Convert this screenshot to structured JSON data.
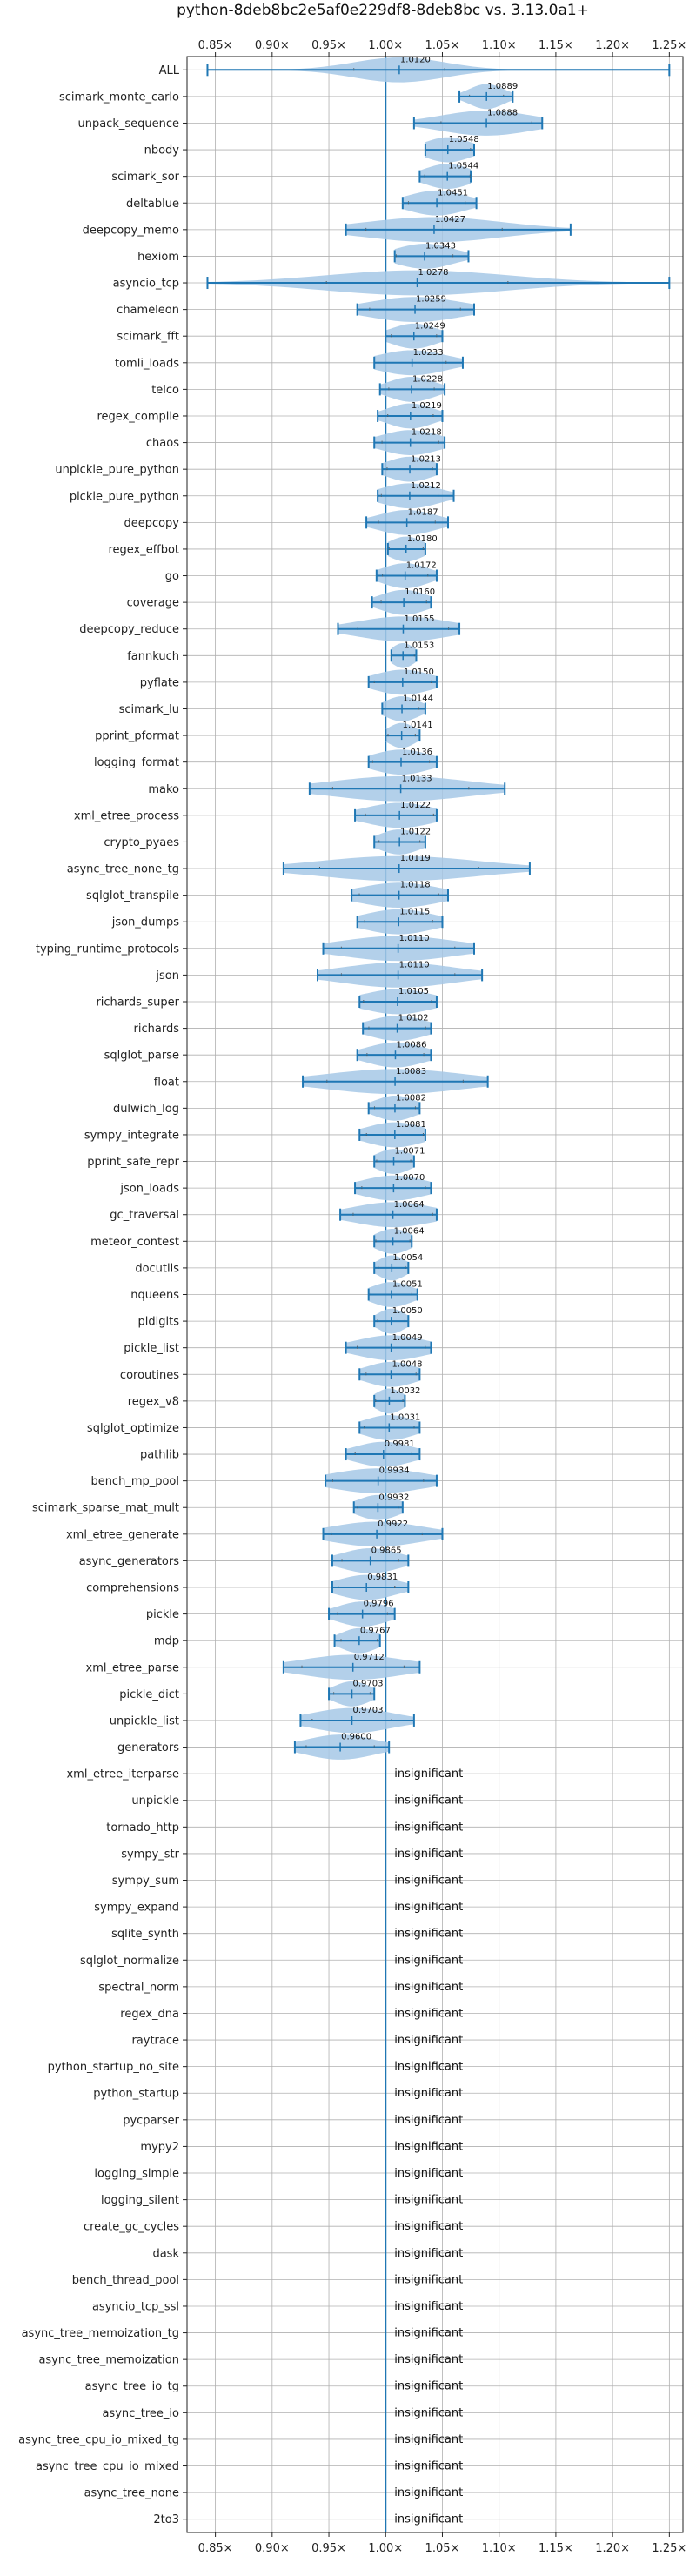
{
  "chart_data": {
    "type": "violin",
    "title": "python-8deb8bc2e5af0e229df8-8deb8bc vs. 3.13.0a1+",
    "xlim": [
      0.825,
      1.262
    ],
    "xticks": [
      0.85,
      0.9,
      0.95,
      1.0,
      1.05,
      1.1,
      1.15,
      1.2,
      1.25
    ],
    "xtick_labels": [
      "0.85×",
      "0.90×",
      "0.95×",
      "1.00×",
      "1.05×",
      "1.10×",
      "1.15×",
      "1.20×",
      "1.25×"
    ],
    "xtick_positions": [
      "top",
      "bottom"
    ],
    "reference_line": 1.0,
    "grid": true,
    "colors": {
      "violin": "#a6c8e6",
      "line": "#1f77b4",
      "grid": "#b0b0b0"
    },
    "insignificant_text": "insignificant",
    "benchmarks": [
      {
        "name": "ALL",
        "value": "1.0120",
        "mean": 1.012,
        "min": 0.843,
        "max": 1.25,
        "spread": 0.04
      },
      {
        "name": "scimark_monte_carlo",
        "value": "1.0889",
        "mean": 1.0889,
        "min": 1.065,
        "max": 1.112,
        "spread": 0.015
      },
      {
        "name": "unpack_sequence",
        "value": "1.0888",
        "mean": 1.0888,
        "min": 1.025,
        "max": 1.138,
        "spread": 0.04
      },
      {
        "name": "nbody",
        "value": "1.0548",
        "mean": 1.0548,
        "min": 1.035,
        "max": 1.078,
        "spread": 0.02
      },
      {
        "name": "scimark_sor",
        "value": "1.0544",
        "mean": 1.0544,
        "min": 1.03,
        "max": 1.075,
        "spread": 0.02
      },
      {
        "name": "deltablue",
        "value": "1.0451",
        "mean": 1.0451,
        "min": 1.015,
        "max": 1.08,
        "spread": 0.025
      },
      {
        "name": "deepcopy_memo",
        "value": "1.0427",
        "mean": 1.0427,
        "min": 0.965,
        "max": 1.163,
        "spread": 0.06
      },
      {
        "name": "hexiom",
        "value": "1.0343",
        "mean": 1.0343,
        "min": 1.008,
        "max": 1.073,
        "spread": 0.025
      },
      {
        "name": "asyncio_tcp",
        "value": "1.0278",
        "mean": 1.0278,
        "min": 0.843,
        "max": 1.25,
        "spread": 0.08
      },
      {
        "name": "chameleon",
        "value": "1.0259",
        "mean": 1.0259,
        "min": 0.975,
        "max": 1.078,
        "spread": 0.04
      },
      {
        "name": "scimark_fft",
        "value": "1.0249",
        "mean": 1.0249,
        "min": 1.0,
        "max": 1.05,
        "spread": 0.02
      },
      {
        "name": "tomli_loads",
        "value": "1.0233",
        "mean": 1.0233,
        "min": 0.99,
        "max": 1.068,
        "spread": 0.03
      },
      {
        "name": "telco",
        "value": "1.0228",
        "mean": 1.0228,
        "min": 0.995,
        "max": 1.052,
        "spread": 0.02
      },
      {
        "name": "regex_compile",
        "value": "1.0219",
        "mean": 1.0219,
        "min": 0.993,
        "max": 1.05,
        "spread": 0.02
      },
      {
        "name": "chaos",
        "value": "1.0218",
        "mean": 1.0218,
        "min": 0.99,
        "max": 1.052,
        "spread": 0.025
      },
      {
        "name": "unpickle_pure_python",
        "value": "1.0213",
        "mean": 1.0213,
        "min": 0.997,
        "max": 1.045,
        "spread": 0.02
      },
      {
        "name": "pickle_pure_python",
        "value": "1.0212",
        "mean": 1.0212,
        "min": 0.993,
        "max": 1.06,
        "spread": 0.025
      },
      {
        "name": "deepcopy",
        "value": "1.0187",
        "mean": 1.0187,
        "min": 0.983,
        "max": 1.055,
        "spread": 0.025
      },
      {
        "name": "regex_effbot",
        "value": "1.0180",
        "mean": 1.018,
        "min": 1.002,
        "max": 1.035,
        "spread": 0.015
      },
      {
        "name": "go",
        "value": "1.0172",
        "mean": 1.0172,
        "min": 0.992,
        "max": 1.045,
        "spread": 0.02
      },
      {
        "name": "coverage",
        "value": "1.0160",
        "mean": 1.016,
        "min": 0.988,
        "max": 1.04,
        "spread": 0.02
      },
      {
        "name": "deepcopy_reduce",
        "value": "1.0155",
        "mean": 1.0155,
        "min": 0.958,
        "max": 1.065,
        "spread": 0.04
      },
      {
        "name": "fannkuch",
        "value": "1.0153",
        "mean": 1.0153,
        "min": 1.005,
        "max": 1.027,
        "spread": 0.01
      },
      {
        "name": "pyflate",
        "value": "1.0150",
        "mean": 1.015,
        "min": 0.985,
        "max": 1.045,
        "spread": 0.025
      },
      {
        "name": "scimark_lu",
        "value": "1.0144",
        "mean": 1.0144,
        "min": 0.997,
        "max": 1.035,
        "spread": 0.015
      },
      {
        "name": "pprint_pformat",
        "value": "1.0141",
        "mean": 1.0141,
        "min": 1.0,
        "max": 1.03,
        "spread": 0.012
      },
      {
        "name": "logging_format",
        "value": "1.0136",
        "mean": 1.0136,
        "min": 0.985,
        "max": 1.045,
        "spread": 0.025
      },
      {
        "name": "mako",
        "value": "1.0133",
        "mean": 1.0133,
        "min": 0.933,
        "max": 1.105,
        "spread": 0.06
      },
      {
        "name": "xml_etree_process",
        "value": "1.0122",
        "mean": 1.0122,
        "min": 0.973,
        "max": 1.045,
        "spread": 0.03
      },
      {
        "name": "crypto_pyaes",
        "value": "1.0122",
        "mean": 1.0122,
        "min": 0.99,
        "max": 1.035,
        "spread": 0.018
      },
      {
        "name": "async_tree_none_tg",
        "value": "1.0119",
        "mean": 1.0119,
        "min": 0.91,
        "max": 1.127,
        "spread": 0.07
      },
      {
        "name": "sqlglot_transpile",
        "value": "1.0118",
        "mean": 1.0118,
        "min": 0.97,
        "max": 1.055,
        "spread": 0.035
      },
      {
        "name": "json_dumps",
        "value": "1.0115",
        "mean": 1.0115,
        "min": 0.975,
        "max": 1.05,
        "spread": 0.03
      },
      {
        "name": "typing_runtime_protocols",
        "value": "1.0110",
        "mean": 1.011,
        "min": 0.945,
        "max": 1.078,
        "spread": 0.05
      },
      {
        "name": "json",
        "value": "1.0110",
        "mean": 1.011,
        "min": 0.94,
        "max": 1.085,
        "spread": 0.05
      },
      {
        "name": "richards_super",
        "value": "1.0105",
        "mean": 1.0105,
        "min": 0.977,
        "max": 1.045,
        "spread": 0.03
      },
      {
        "name": "richards",
        "value": "1.0102",
        "mean": 1.0102,
        "min": 0.98,
        "max": 1.04,
        "spread": 0.025
      },
      {
        "name": "sqlglot_parse",
        "value": "1.0086",
        "mean": 1.0086,
        "min": 0.975,
        "max": 1.04,
        "spread": 0.025
      },
      {
        "name": "float",
        "value": "1.0083",
        "mean": 1.0083,
        "min": 0.927,
        "max": 1.09,
        "spread": 0.06
      },
      {
        "name": "dulwich_log",
        "value": "1.0082",
        "mean": 1.0082,
        "min": 0.985,
        "max": 1.03,
        "spread": 0.018
      },
      {
        "name": "sympy_integrate",
        "value": "1.0081",
        "mean": 1.0081,
        "min": 0.977,
        "max": 1.035,
        "spread": 0.025
      },
      {
        "name": "pprint_safe_repr",
        "value": "1.0071",
        "mean": 1.0071,
        "min": 0.99,
        "max": 1.025,
        "spread": 0.015
      },
      {
        "name": "json_loads",
        "value": "1.0070",
        "mean": 1.007,
        "min": 0.973,
        "max": 1.04,
        "spread": 0.028
      },
      {
        "name": "gc_traversal",
        "value": "1.0064",
        "mean": 1.0064,
        "min": 0.96,
        "max": 1.045,
        "spread": 0.035
      },
      {
        "name": "meteor_contest",
        "value": "1.0064",
        "mean": 1.0064,
        "min": 0.99,
        "max": 1.023,
        "spread": 0.015
      },
      {
        "name": "docutils",
        "value": "1.0054",
        "mean": 1.0054,
        "min": 0.99,
        "max": 1.02,
        "spread": 0.012
      },
      {
        "name": "nqueens",
        "value": "1.0051",
        "mean": 1.0051,
        "min": 0.985,
        "max": 1.028,
        "spread": 0.018
      },
      {
        "name": "pidigits",
        "value": "1.0050",
        "mean": 1.005,
        "min": 0.99,
        "max": 1.02,
        "spread": 0.012
      },
      {
        "name": "pickle_list",
        "value": "1.0049",
        "mean": 1.0049,
        "min": 0.965,
        "max": 1.04,
        "spread": 0.03
      },
      {
        "name": "coroutines",
        "value": "1.0048",
        "mean": 1.0048,
        "min": 0.977,
        "max": 1.03,
        "spread": 0.022
      },
      {
        "name": "regex_v8",
        "value": "1.0032",
        "mean": 1.0032,
        "min": 0.99,
        "max": 1.017,
        "spread": 0.012
      },
      {
        "name": "sqlglot_optimize",
        "value": "1.0031",
        "mean": 1.0031,
        "min": 0.977,
        "max": 1.03,
        "spread": 0.022
      },
      {
        "name": "pathlib",
        "value": "0.9981",
        "mean": 0.9981,
        "min": 0.965,
        "max": 1.03,
        "spread": 0.025
      },
      {
        "name": "bench_mp_pool",
        "value": "0.9934",
        "mean": 0.9934,
        "min": 0.947,
        "max": 1.045,
        "spread": 0.04
      },
      {
        "name": "scimark_sparse_mat_mult",
        "value": "0.9932",
        "mean": 0.9932,
        "min": 0.972,
        "max": 1.015,
        "spread": 0.018
      },
      {
        "name": "xml_etree_generate",
        "value": "0.9922",
        "mean": 0.9922,
        "min": 0.945,
        "max": 1.05,
        "spread": 0.04
      },
      {
        "name": "async_generators",
        "value": "0.9865",
        "mean": 0.9865,
        "min": 0.953,
        "max": 1.02,
        "spread": 0.025
      },
      {
        "name": "comprehensions",
        "value": "0.9831",
        "mean": 0.9831,
        "min": 0.953,
        "max": 1.02,
        "spread": 0.025
      },
      {
        "name": "pickle",
        "value": "0.9796",
        "mean": 0.9796,
        "min": 0.95,
        "max": 1.008,
        "spread": 0.022
      },
      {
        "name": "mdp",
        "value": "0.9767",
        "mean": 0.9767,
        "min": 0.955,
        "max": 0.995,
        "spread": 0.016
      },
      {
        "name": "xml_etree_parse",
        "value": "0.9712",
        "mean": 0.9712,
        "min": 0.91,
        "max": 1.03,
        "spread": 0.045
      },
      {
        "name": "pickle_dict",
        "value": "0.9703",
        "mean": 0.9703,
        "min": 0.95,
        "max": 0.99,
        "spread": 0.016
      },
      {
        "name": "unpickle_list",
        "value": "0.9703",
        "mean": 0.9703,
        "min": 0.925,
        "max": 1.025,
        "spread": 0.035
      },
      {
        "name": "generators",
        "value": "0.9600",
        "mean": 0.96,
        "min": 0.92,
        "max": 1.003,
        "spread": 0.03
      },
      {
        "name": "xml_etree_iterparse",
        "insignificant": true
      },
      {
        "name": "unpickle",
        "insignificant": true
      },
      {
        "name": "tornado_http",
        "insignificant": true
      },
      {
        "name": "sympy_str",
        "insignificant": true
      },
      {
        "name": "sympy_sum",
        "insignificant": true
      },
      {
        "name": "sympy_expand",
        "insignificant": true
      },
      {
        "name": "sqlite_synth",
        "insignificant": true
      },
      {
        "name": "sqlglot_normalize",
        "insignificant": true
      },
      {
        "name": "spectral_norm",
        "insignificant": true
      },
      {
        "name": "regex_dna",
        "insignificant": true
      },
      {
        "name": "raytrace",
        "insignificant": true
      },
      {
        "name": "python_startup_no_site",
        "insignificant": true
      },
      {
        "name": "python_startup",
        "insignificant": true
      },
      {
        "name": "pycparser",
        "insignificant": true
      },
      {
        "name": "mypy2",
        "insignificant": true
      },
      {
        "name": "logging_simple",
        "insignificant": true
      },
      {
        "name": "logging_silent",
        "insignificant": true
      },
      {
        "name": "create_gc_cycles",
        "insignificant": true
      },
      {
        "name": "dask",
        "insignificant": true
      },
      {
        "name": "bench_thread_pool",
        "insignificant": true
      },
      {
        "name": "asyncio_tcp_ssl",
        "insignificant": true
      },
      {
        "name": "async_tree_memoization_tg",
        "insignificant": true
      },
      {
        "name": "async_tree_memoization",
        "insignificant": true
      },
      {
        "name": "async_tree_io_tg",
        "insignificant": true
      },
      {
        "name": "async_tree_io",
        "insignificant": true
      },
      {
        "name": "async_tree_cpu_io_mixed_tg",
        "insignificant": true
      },
      {
        "name": "async_tree_cpu_io_mixed",
        "insignificant": true
      },
      {
        "name": "async_tree_none",
        "insignificant": true
      },
      {
        "name": "2to3",
        "insignificant": true
      }
    ]
  }
}
